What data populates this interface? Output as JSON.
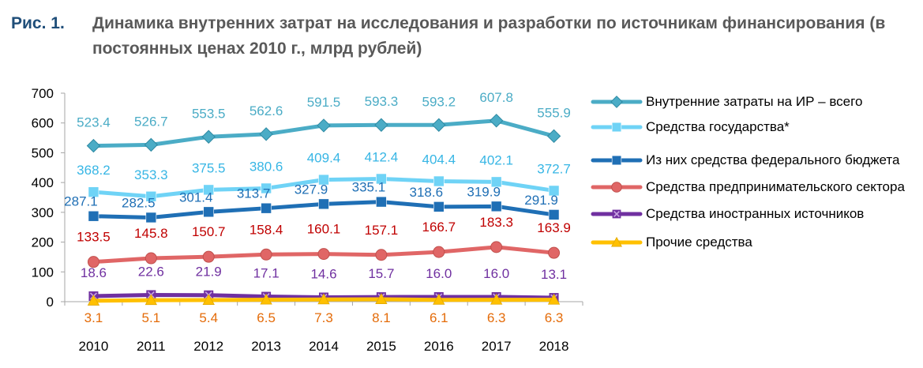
{
  "figure": {
    "number": "Рис. 1.",
    "title": "Динамика внутренних затрат на исследования и разработки по источникам финансирования (в постоянных ценах 2010 г., млрд рублей)"
  },
  "chart_data": {
    "type": "line",
    "title": "Динамика внутренних затрат на исследования и разработки по источникам финансирования (в постоянных ценах 2010 г., млрд рублей)",
    "xlabel": "",
    "ylabel": "",
    "categories": [
      "2010",
      "2011",
      "2012",
      "2013",
      "2014",
      "2015",
      "2016",
      "2017",
      "2018"
    ],
    "ylim": [
      0,
      700
    ],
    "yticks": [
      "0",
      "100",
      "200",
      "300",
      "400",
      "500",
      "600",
      "700"
    ],
    "grid": false,
    "legend_position": "right",
    "series": [
      {
        "name": "Внутренние затраты на ИР – всего",
        "color": "#4bacc6",
        "marker": "diamond",
        "values": [
          523.4,
          526.7,
          553.5,
          562.6,
          591.5,
          593.3,
          593.2,
          607.8,
          555.9
        ],
        "labels": [
          "523.4",
          "526.7",
          "553.5",
          "562.6",
          "591.5",
          "593.3",
          "593.2",
          "607.8",
          "555.9"
        ]
      },
      {
        "name": "Средства государства*",
        "color": "#6fd3f6",
        "marker": "square",
        "values": [
          368.2,
          353.3,
          375.5,
          380.6,
          409.4,
          412.4,
          404.4,
          402.1,
          372.7
        ],
        "labels": [
          "368.2",
          "353.3",
          "375.5",
          "380.6",
          "409.4",
          "412.4",
          "404.4",
          "402.1",
          "372.7"
        ]
      },
      {
        "name": "Из них средства федерального бюджета",
        "color": "#1f6fb5",
        "marker": "square",
        "values": [
          287.1,
          282.5,
          301.4,
          313.7,
          327.9,
          335.1,
          318.6,
          319.9,
          291.9
        ],
        "labels": [
          "287.1",
          "282.5",
          "301.4",
          "313.7",
          "327.9",
          "335.1",
          "318.6",
          "319.9",
          "291.9"
        ]
      },
      {
        "name": "Средства предпринимательского сектора",
        "color": "#e06666",
        "marker": "circle",
        "values": [
          133.5,
          145.8,
          150.7,
          158.4,
          160.1,
          157.1,
          166.7,
          183.3,
          163.9
        ],
        "labels": [
          "133.5",
          "145.8",
          "150.7",
          "158.4",
          "160.1",
          "157.1",
          "166.7",
          "183.3",
          "163.9"
        ]
      },
      {
        "name": "Средства иностранных источников",
        "color": "#7030a0",
        "marker": "square-x",
        "values": [
          18.6,
          22.6,
          21.9,
          17.1,
          14.6,
          15.7,
          16.0,
          16.0,
          13.1
        ],
        "labels": [
          "18.6",
          "22.6",
          "21.9",
          "17.1",
          "14.6",
          "15.7",
          "16.0",
          "16.0",
          "13.1"
        ]
      },
      {
        "name": "Прочие средства",
        "color": "#ffc000",
        "marker": "triangle",
        "values": [
          3.1,
          5.1,
          5.4,
          6.5,
          7.3,
          8.1,
          6.1,
          6.3,
          6.3
        ],
        "labels": [
          "3.1",
          "5.1",
          "5.4",
          "6.5",
          "7.3",
          "8.1",
          "6.1",
          "6.3",
          "6.3"
        ]
      }
    ]
  },
  "label_colors": [
    "#4bacc6",
    "#37b6e5",
    "#1f6fb5",
    "#c00000",
    "#7030a0",
    "#e46c0a"
  ]
}
